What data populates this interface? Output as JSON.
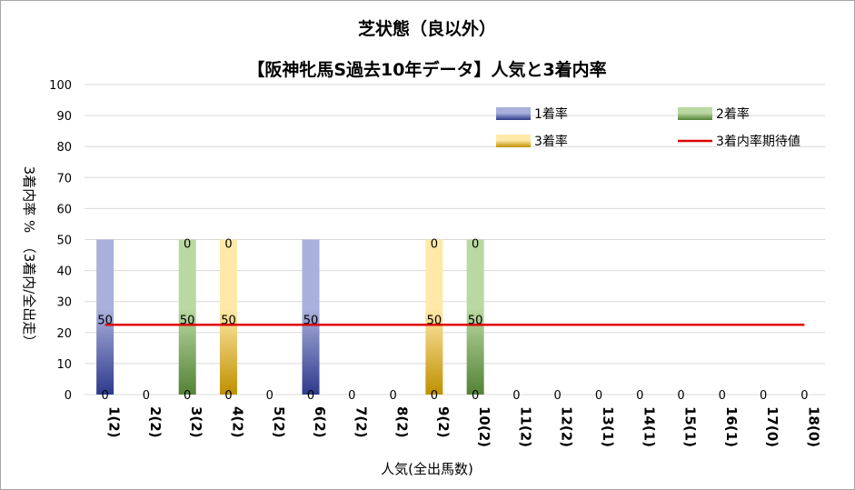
{
  "chart_data": {
    "type": "bar",
    "title": "芝状態（良以外）",
    "subtitle": "【阪神牝馬S過去10年データ】人気と3着内率",
    "xlabel": "人気(全出馬数)",
    "ylabel": "3着内率 %　（3着内/全出走）",
    "ylim": [
      0,
      100
    ],
    "yticks": [
      0,
      10,
      20,
      30,
      40,
      50,
      60,
      70,
      80,
      90,
      100
    ],
    "categories": [
      "1(2)",
      "2(2)",
      "3(2)",
      "4(2)",
      "5(2)",
      "6(2)",
      "7(2)",
      "8(2)",
      "9(2)",
      "10(2)",
      "11(2)",
      "12(2)",
      "13(1)",
      "14(1)",
      "15(1)",
      "16(1)",
      "17(0)",
      "18(0)"
    ],
    "series": [
      {
        "name": "1着率",
        "color": "#2e3a8c",
        "values": [
          50,
          0,
          0,
          0,
          0,
          50,
          0,
          0,
          0,
          0,
          0,
          0,
          0,
          0,
          0,
          0,
          0,
          0
        ]
      },
      {
        "name": "2着率",
        "color": "#548235",
        "values": [
          0,
          0,
          50,
          0,
          0,
          0,
          0,
          0,
          0,
          50,
          0,
          0,
          0,
          0,
          0,
          0,
          0,
          0
        ]
      },
      {
        "name": "3着率",
        "color": "#bf9000",
        "values": [
          0,
          0,
          0,
          50,
          0,
          0,
          0,
          0,
          50,
          0,
          0,
          0,
          0,
          0,
          0,
          0,
          0,
          0
        ]
      }
    ],
    "expected_line": {
      "name": "3着内率期待値",
      "color": "#e00000",
      "value": 22.5
    },
    "data_labels": {
      "bottom": [
        "0",
        "0",
        "0",
        "0",
        "0",
        "0",
        "0",
        "0",
        "0",
        "0",
        "0",
        "0",
        "0",
        "0",
        "0",
        "0",
        "0",
        "0"
      ],
      "middle": [
        "50",
        "",
        "50",
        "50",
        "",
        "50",
        "",
        "",
        "50",
        "50",
        "",
        "",
        "",
        "",
        "",
        "",
        "",
        ""
      ],
      "top": [
        "",
        "",
        "0",
        "0",
        "",
        "",
        "",
        "",
        "0",
        "0",
        "",
        "",
        "",
        "",
        "",
        "",
        "",
        ""
      ]
    },
    "legend": "top-right",
    "grid": true
  }
}
